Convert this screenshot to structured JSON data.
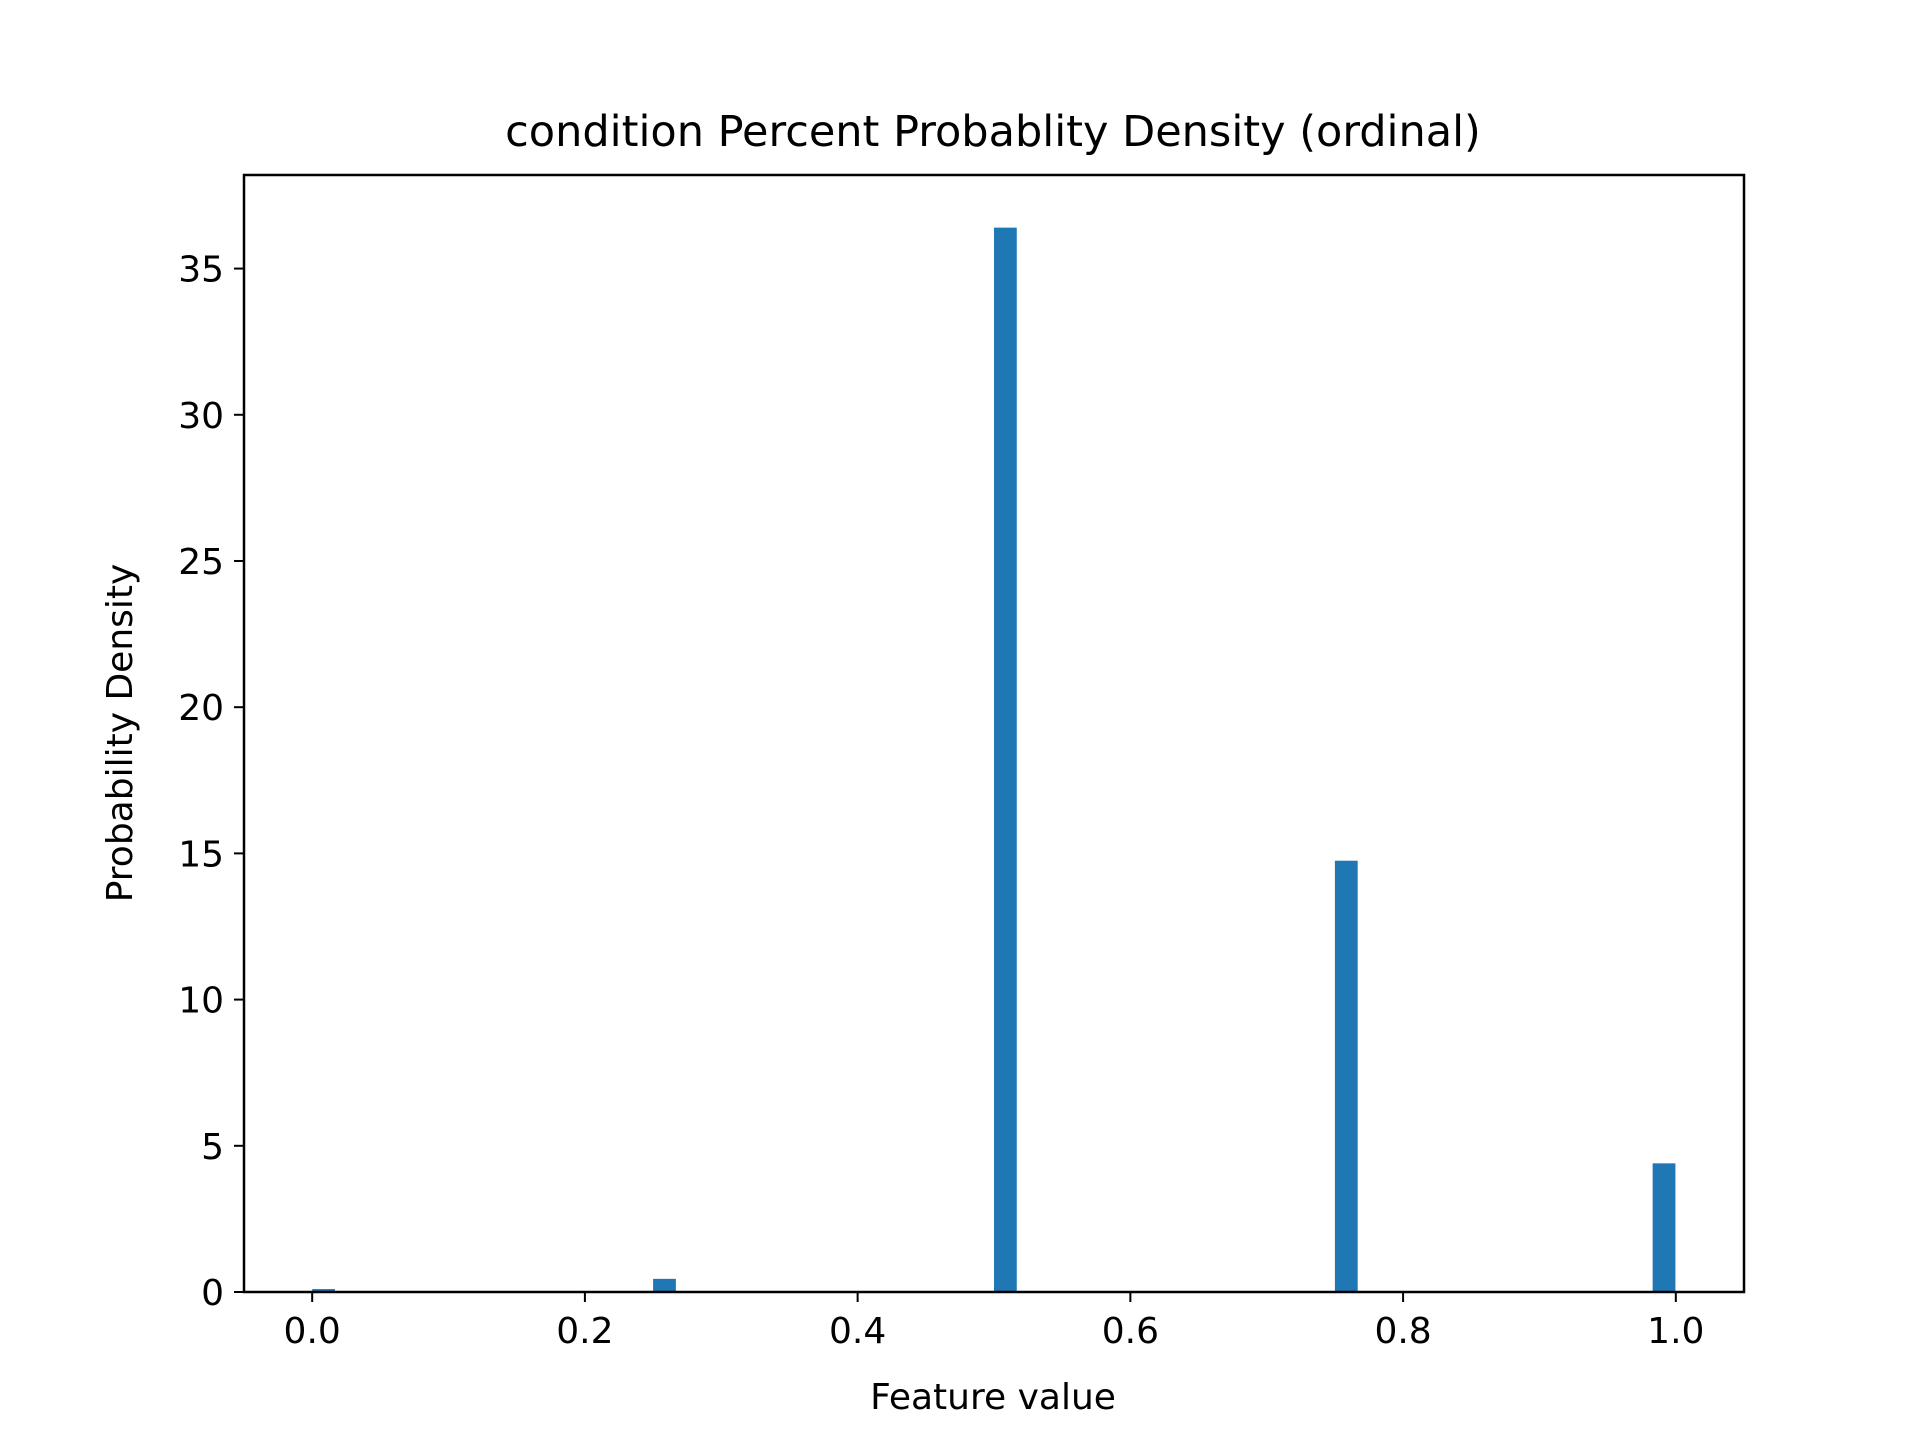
{
  "chart_data": {
    "type": "bar",
    "title": "condition Percent Probablity Density (ordinal)",
    "xlabel": "Feature value",
    "ylabel": "Probability Density",
    "xlim": [
      -0.05,
      1.05
    ],
    "ylim": [
      0,
      38.2
    ],
    "xticks": [
      0.0,
      0.2,
      0.4,
      0.6,
      0.8,
      1.0
    ],
    "xtick_labels": [
      "0.0",
      "0.2",
      "0.4",
      "0.6",
      "0.8",
      "1.0"
    ],
    "yticks": [
      0,
      5,
      10,
      15,
      20,
      25,
      30,
      35
    ],
    "ytick_labels": [
      "0",
      "5",
      "10",
      "15",
      "20",
      "25",
      "30",
      "35"
    ],
    "bin_width": 0.0167,
    "bars": [
      {
        "x": 0.0,
        "value": 0.1
      },
      {
        "x": 0.25,
        "value": 0.45
      },
      {
        "x": 0.5,
        "value": 36.4
      },
      {
        "x": 0.75,
        "value": 14.75
      },
      {
        "x": 0.983,
        "value": 4.4
      }
    ],
    "bar_color": "#1f77b4",
    "grid": false,
    "legend": "none"
  }
}
